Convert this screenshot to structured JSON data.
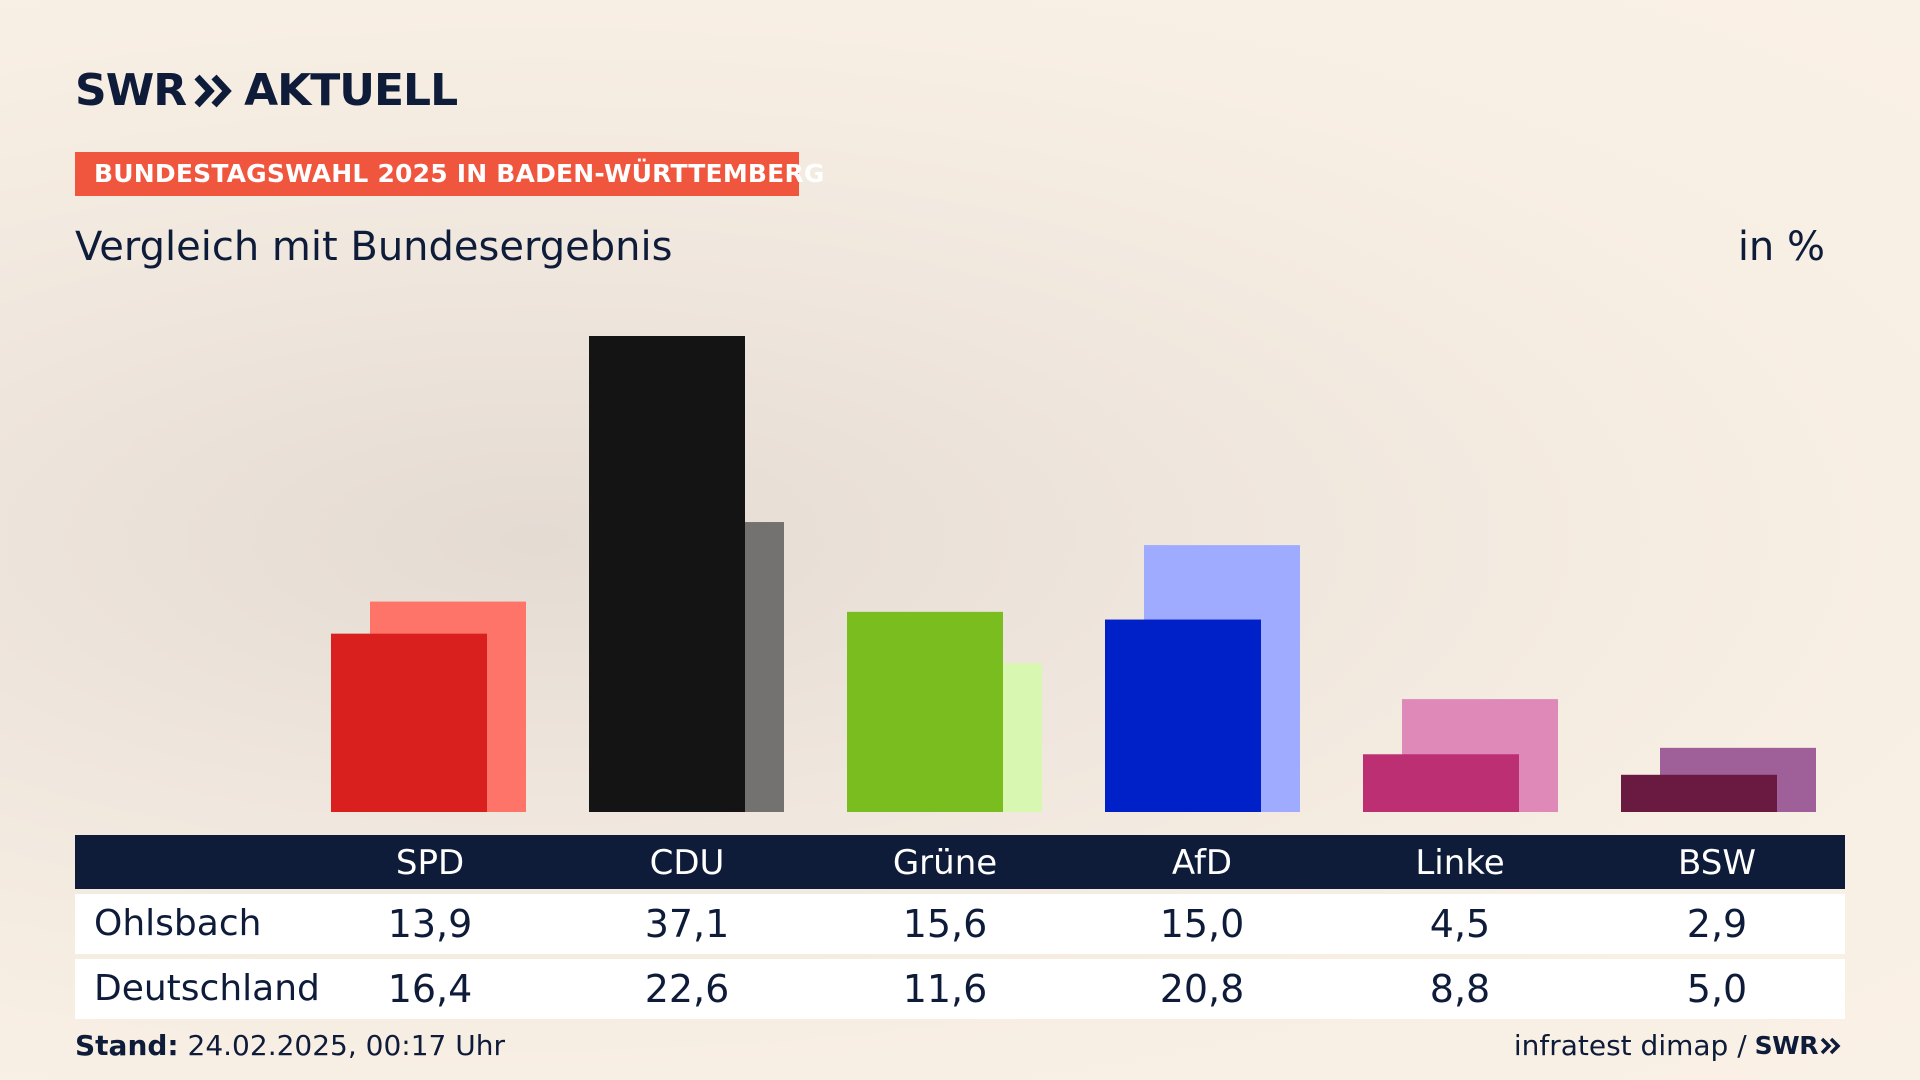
{
  "header": {
    "logo_left": "SWR",
    "logo_right": "AKTUELL",
    "tag": "BUNDESTAGSWAHL 2025 IN BADEN-WÜRTTEMBERG",
    "subtitle": "Vergleich mit Bundesergebnis",
    "unit": "in %"
  },
  "chart_data": {
    "type": "bar",
    "title": "Vergleich mit Bundesergebnis",
    "ylabel": "in %",
    "categories": [
      "SPD",
      "CDU",
      "Grüne",
      "AfD",
      "Linke",
      "BSW"
    ],
    "series": [
      {
        "name": "Ohlsbach",
        "values": [
          13.9,
          37.1,
          15.6,
          15.0,
          4.5,
          2.9
        ]
      },
      {
        "name": "Deutschland",
        "values": [
          16.4,
          22.6,
          11.6,
          20.8,
          8.8,
          5.0
        ]
      }
    ],
    "colors": {
      "local": [
        "#d9201f",
        "#141414",
        "#7abd1e",
        "#0020c8",
        "#bd2f73",
        "#6a1a40"
      ],
      "national": [
        "#ff7469",
        "#737270",
        "#d8f7b0",
        "#9eabff",
        "#de89b7",
        "#9f5f99"
      ]
    },
    "ylim": [
      0,
      37.1
    ],
    "grid": false,
    "legend": "table-below"
  },
  "table": {
    "columns": [
      "SPD",
      "CDU",
      "Grüne",
      "AfD",
      "Linke",
      "BSW"
    ],
    "rows": [
      {
        "label": "Ohlsbach",
        "values": [
          "13,9",
          "37,1",
          "15,6",
          "15,0",
          "4,5",
          "2,9"
        ]
      },
      {
        "label": "Deutschland",
        "values": [
          "16,4",
          "22,6",
          "11,6",
          "20,8",
          "8,8",
          "5,0"
        ]
      }
    ]
  },
  "footer": {
    "stand_label": "Stand:",
    "stand_value": "24.02.2025, 00:17 Uhr",
    "source": "infratest dimap /",
    "source_logo": "SWR"
  }
}
